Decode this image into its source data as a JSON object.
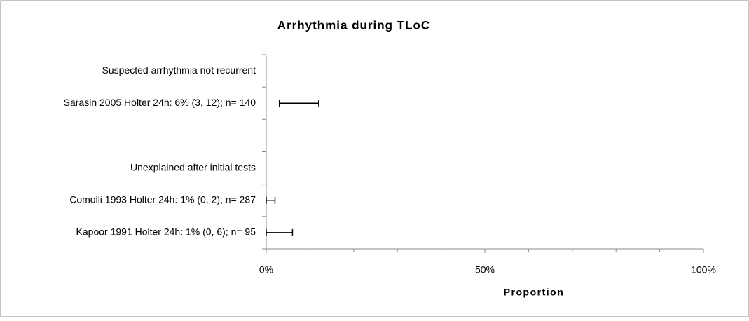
{
  "chart_data": {
    "type": "errorbar",
    "title": "Arrhythmia during TLoC",
    "x_label": "Proportion",
    "categories": [
      "Suspected arrhythmia not recurrent",
      "Sarasin 2005 Holter 24h: 6% (3, 12); n= 140",
      null,
      "Unexplained after initial tests",
      "Comolli 1993 Holter 24h: 1% (0, 2); n= 287",
      "Kapoor 1991 Holter 24h: 1% (0, 6); n= 95"
    ],
    "values": [
      null,
      6,
      null,
      null,
      1,
      1
    ],
    "lower": [
      null,
      3,
      null,
      null,
      0,
      0
    ],
    "upper": [
      null,
      12,
      null,
      null,
      2,
      6
    ],
    "color": "#000000",
    "xlim": [
      0,
      100
    ],
    "xticks": [
      {
        "value": 0,
        "label": "0%"
      },
      {
        "value": 50,
        "label": "50%"
      },
      {
        "value": 100,
        "label": "100%"
      }
    ],
    "xminorticks": [
      10,
      20,
      30,
      40,
      60,
      70,
      80,
      90
    ]
  }
}
